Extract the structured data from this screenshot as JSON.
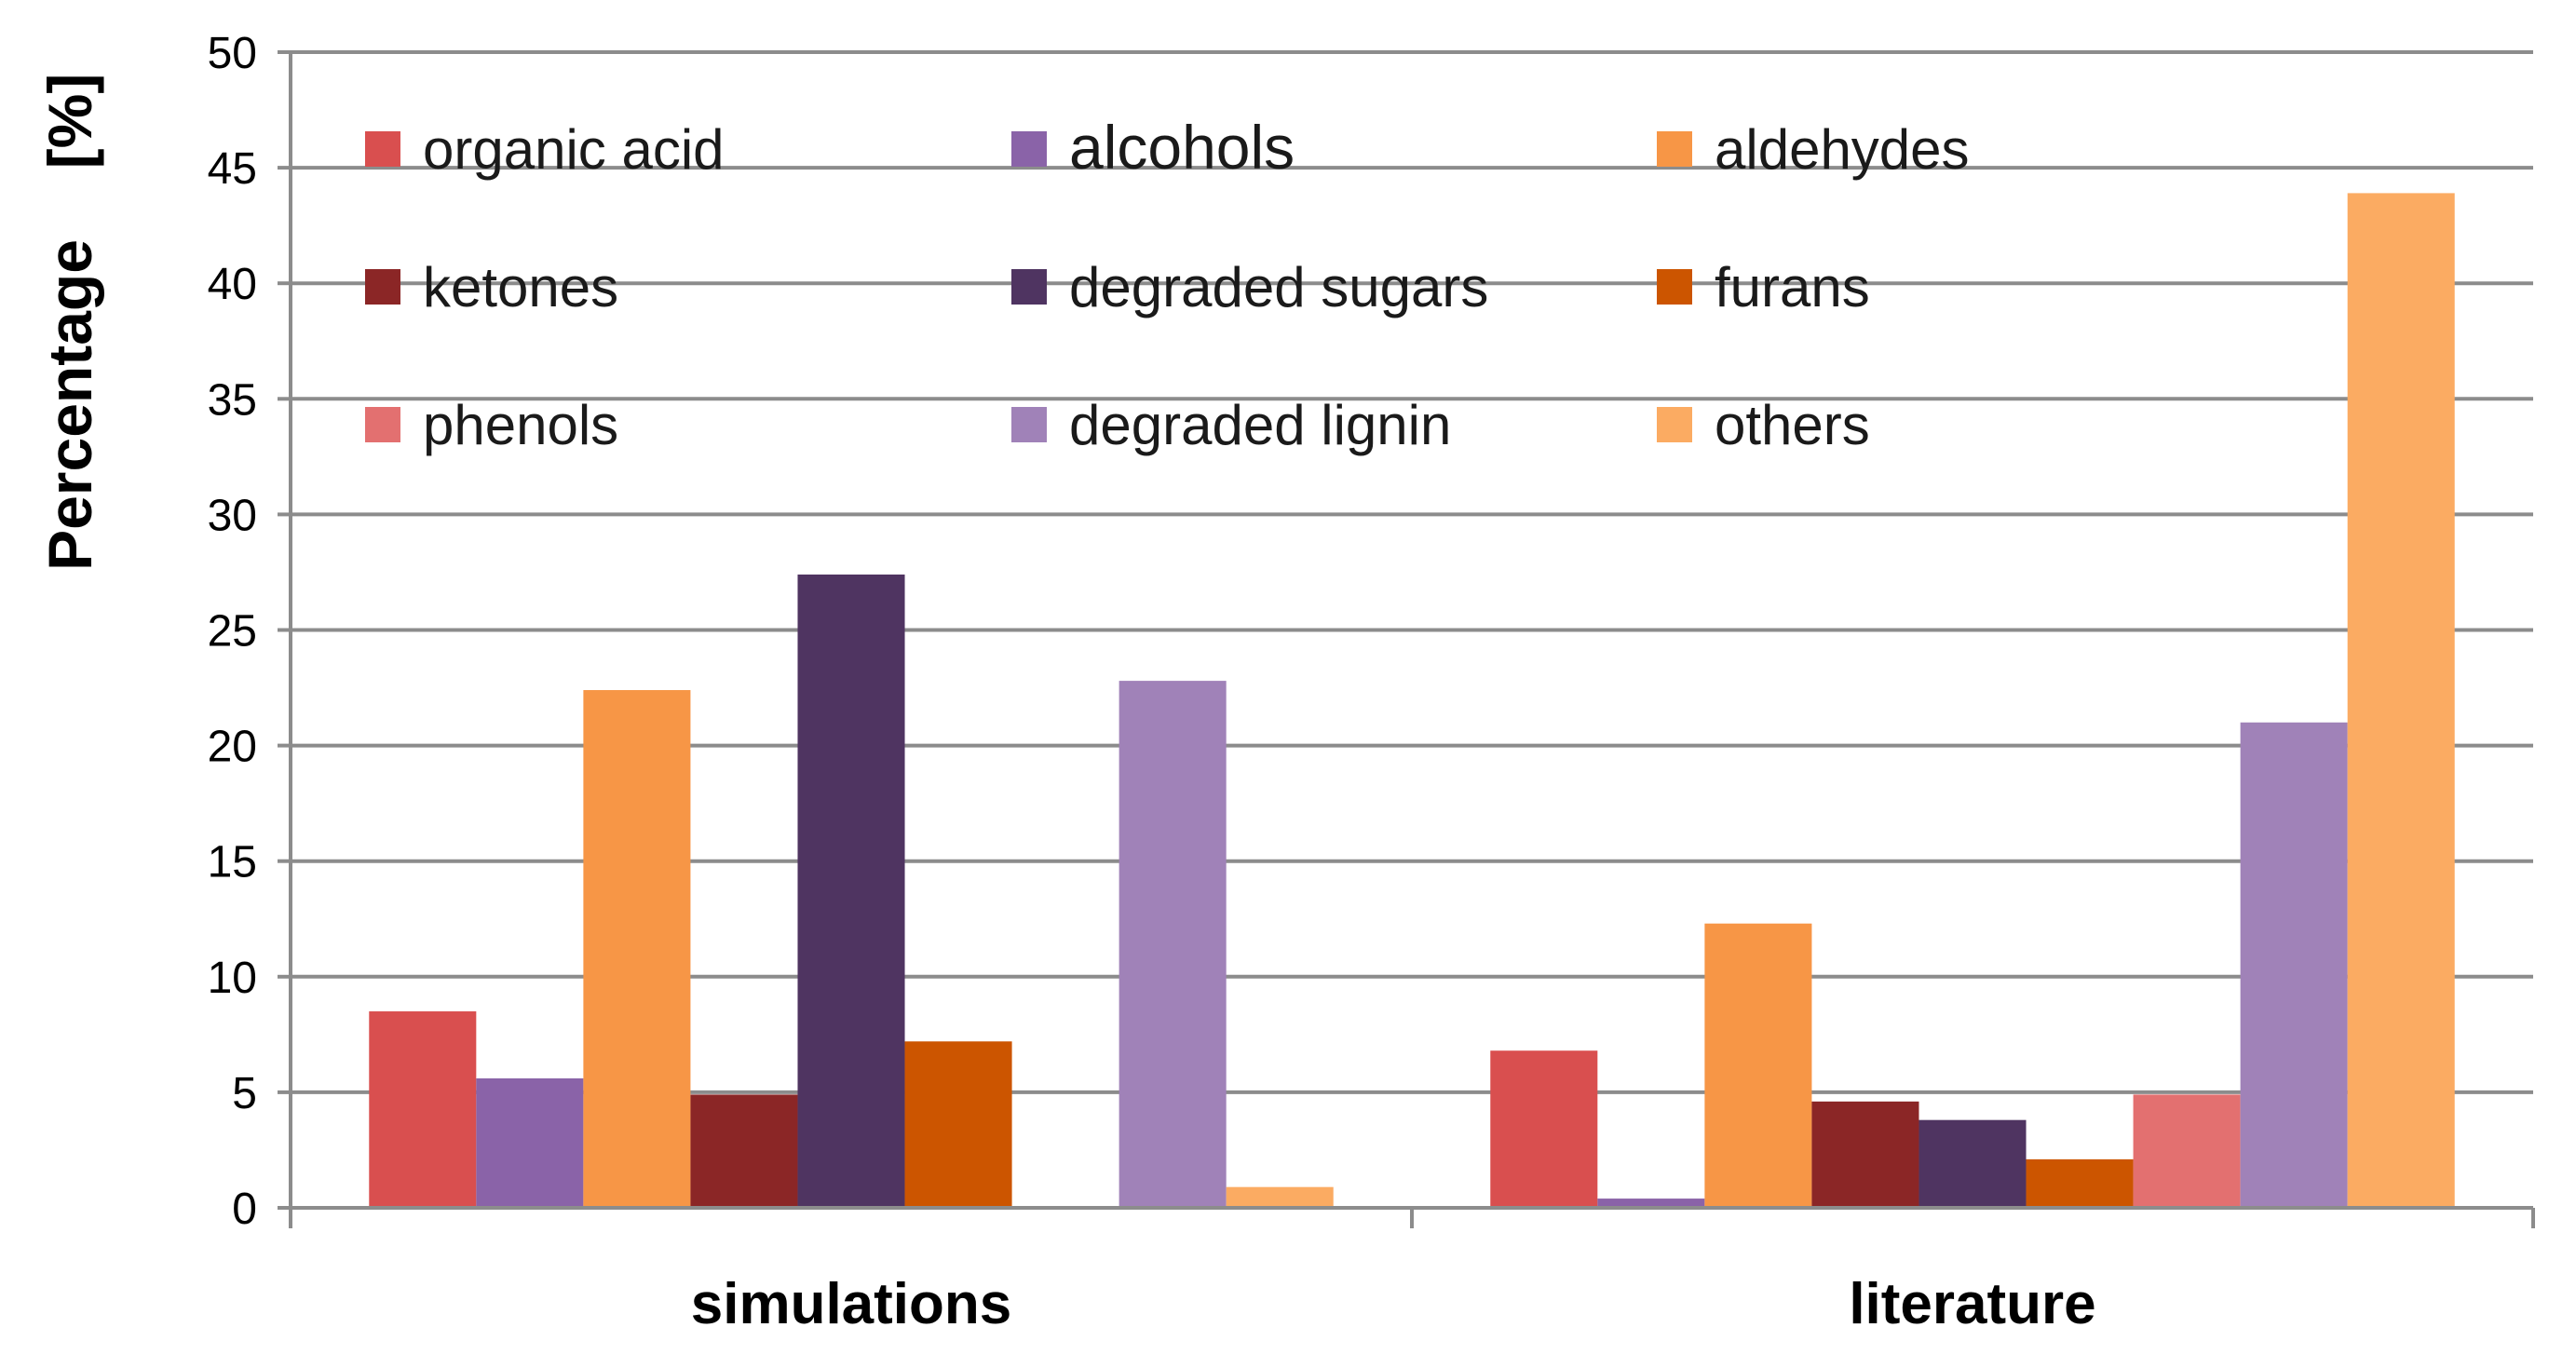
{
  "chart_data": {
    "type": "bar",
    "title": "",
    "xlabel": "",
    "ylabel": "Percentage",
    "ylabel_unit": "[%]",
    "ylim": [
      0,
      50
    ],
    "yticks": [
      0,
      5,
      10,
      15,
      20,
      25,
      30,
      35,
      40,
      45,
      50
    ],
    "grid": true,
    "legend_position": "top-left, 3 columns",
    "categories": [
      "simulations",
      "literature"
    ],
    "series": [
      {
        "name": "organic acid",
        "color": "#d94f4f",
        "values": [
          8.5,
          6.8
        ]
      },
      {
        "name": "alcohols",
        "color": "#8a63a8",
        "values": [
          5.6,
          0.4
        ]
      },
      {
        "name": "aldehydes",
        "color": "#f79646",
        "values": [
          22.4,
          12.3
        ]
      },
      {
        "name": "ketones",
        "color": "#8b2626",
        "values": [
          4.9,
          4.6
        ]
      },
      {
        "name": "degraded sugars",
        "color": "#4f3461",
        "values": [
          27.4,
          3.8
        ]
      },
      {
        "name": "furans",
        "color": "#cc5500",
        "values": [
          7.2,
          2.1
        ]
      },
      {
        "name": "phenols",
        "color": "#e37070",
        "values": [
          0,
          4.9
        ]
      },
      {
        "name": "degraded lignin",
        "color": "#a082b8",
        "values": [
          22.8,
          21.0
        ]
      },
      {
        "name": "others",
        "color": "#fbab62",
        "values": [
          0.9,
          43.9
        ]
      }
    ]
  }
}
